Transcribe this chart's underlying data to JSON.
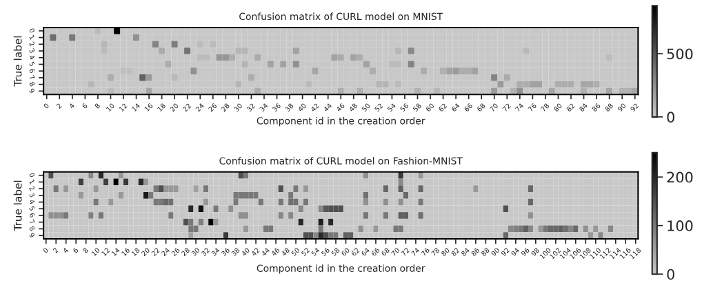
{
  "chart_data": [
    {
      "type": "heatmap",
      "title": "Confusion matrix of CURL model on MNIST",
      "xlabel": "Component id in the creation order",
      "ylabel": "True label",
      "categories": [
        "0",
        null,
        "2",
        null,
        "4",
        null,
        "6",
        null,
        "8",
        null,
        "10",
        null,
        "12",
        null,
        "14",
        null,
        "16",
        null,
        "18",
        null,
        "20",
        null,
        "22",
        null,
        "24",
        null,
        "26",
        null,
        "28",
        null,
        "30",
        null,
        "32",
        null,
        "34",
        null,
        "36",
        null,
        "38",
        null,
        "40",
        null,
        "42",
        null,
        "44",
        null,
        "46",
        null,
        "48",
        null,
        "50",
        null,
        "52",
        null,
        "54",
        null,
        "56",
        null,
        "58",
        null,
        "60",
        null,
        "62",
        null,
        "64",
        null,
        "66",
        null,
        "68",
        null,
        "70",
        null,
        "72",
        null,
        "74",
        null,
        "76",
        null,
        "78",
        null,
        "80",
        null,
        "82",
        null,
        "84",
        null,
        "86",
        null,
        "88",
        null,
        "90",
        null,
        "92"
      ],
      "y_categories": [
        "0",
        "1",
        "2",
        "3",
        "4",
        "5",
        "6",
        "7",
        "8",
        "9"
      ],
      "cells": [
        [
          0,
          0,
          0,
          0,
          0,
          0,
          0,
          0,
          60,
          0,
          0,
          880,
          0,
          0,
          0,
          0,
          0,
          0,
          0,
          0,
          0,
          0,
          0,
          0,
          0,
          0,
          0,
          0,
          0,
          0,
          0,
          0,
          0,
          0,
          0,
          0,
          0,
          0,
          0,
          0,
          0,
          0,
          0,
          0,
          0,
          0,
          0,
          0,
          0,
          0,
          0,
          0,
          0,
          0,
          0,
          0,
          0,
          0,
          0,
          0,
          0,
          0,
          0,
          0,
          0,
          0,
          0,
          0,
          0,
          0,
          0,
          0,
          0,
          0,
          0,
          0,
          0,
          0,
          0,
          0,
          0,
          0,
          0,
          0,
          0,
          0,
          0,
          0,
          0,
          0,
          0,
          0,
          0
        ],
        [
          0,
          400,
          0,
          0,
          350,
          0,
          0,
          0,
          0,
          0,
          0,
          0,
          0,
          0,
          250,
          0,
          0,
          0,
          0,
          0,
          0,
          0,
          0,
          0,
          0,
          0,
          0,
          0,
          0,
          0,
          0,
          0,
          0,
          0,
          0,
          0,
          0,
          0,
          0,
          0,
          0,
          0,
          0,
          0,
          0,
          0,
          0,
          0,
          0,
          0,
          0,
          0,
          0,
          0,
          0,
          0,
          0,
          0,
          0,
          0,
          0,
          0,
          0,
          0,
          0,
          0,
          0,
          0,
          0,
          0,
          0,
          0,
          0,
          0,
          0,
          0,
          0,
          0,
          0,
          0,
          0,
          0,
          0,
          0,
          0,
          0,
          0,
          0,
          0,
          0,
          0,
          0,
          0
        ],
        [
          0,
          0,
          0,
          0,
          0,
          0,
          0,
          0,
          0,
          80,
          0,
          0,
          0,
          0,
          0,
          0,
          0,
          300,
          0,
          0,
          330,
          0,
          0,
          0,
          60,
          0,
          60,
          0,
          0,
          0,
          0,
          0,
          0,
          0,
          0,
          0,
          0,
          0,
          0,
          0,
          0,
          0,
          0,
          0,
          0,
          0,
          0,
          0,
          0,
          0,
          0,
          0,
          0,
          0,
          0,
          0,
          0,
          0,
          0,
          0,
          0,
          0,
          0,
          0,
          0,
          0,
          0,
          0,
          0,
          0,
          0,
          0,
          0,
          0,
          0,
          0,
          0,
          0,
          0,
          0,
          0,
          0,
          0,
          0,
          0,
          0,
          0,
          0,
          0,
          0,
          0,
          0,
          0
        ],
        [
          0,
          0,
          0,
          0,
          0,
          0,
          0,
          0,
          0,
          60,
          0,
          0,
          0,
          0,
          0,
          0,
          0,
          0,
          130,
          0,
          0,
          0,
          380,
          0,
          0,
          0,
          0,
          0,
          0,
          0,
          80,
          80,
          0,
          0,
          0,
          0,
          0,
          0,
          0,
          170,
          0,
          0,
          0,
          0,
          0,
          0,
          0,
          0,
          0,
          0,
          0,
          0,
          0,
          0,
          0,
          80,
          0,
          280,
          0,
          0,
          0,
          0,
          0,
          0,
          0,
          0,
          0,
          0,
          0,
          0,
          0,
          0,
          0,
          0,
          0,
          70,
          0,
          0,
          0,
          0,
          0,
          0,
          0,
          0,
          0,
          0,
          0,
          0,
          0,
          0,
          0,
          0,
          0
        ],
        [
          0,
          0,
          0,
          0,
          0,
          0,
          0,
          0,
          0,
          0,
          0,
          0,
          0,
          0,
          0,
          0,
          0,
          0,
          0,
          0,
          0,
          0,
          0,
          0,
          60,
          60,
          0,
          220,
          220,
          120,
          0,
          0,
          0,
          130,
          0,
          0,
          0,
          0,
          0,
          0,
          0,
          0,
          0,
          0,
          0,
          170,
          130,
          0,
          170,
          120,
          0,
          0,
          0,
          0,
          0,
          0,
          0,
          0,
          0,
          0,
          0,
          0,
          0,
          0,
          0,
          0,
          0,
          0,
          0,
          0,
          0,
          0,
          0,
          0,
          0,
          0,
          0,
          0,
          0,
          0,
          0,
          0,
          0,
          0,
          0,
          0,
          0,
          0,
          60,
          0,
          0,
          0,
          0
        ],
        [
          0,
          0,
          0,
          0,
          0,
          0,
          0,
          0,
          0,
          0,
          0,
          0,
          0,
          0,
          0,
          0,
          0,
          0,
          0,
          120,
          0,
          0,
          0,
          0,
          0,
          0,
          0,
          0,
          0,
          0,
          0,
          90,
          0,
          0,
          0,
          170,
          0,
          170,
          0,
          250,
          0,
          0,
          0,
          0,
          0,
          0,
          0,
          0,
          0,
          0,
          170,
          0,
          0,
          0,
          60,
          60,
          0,
          300,
          0,
          0,
          0,
          0,
          0,
          0,
          0,
          0,
          0,
          0,
          0,
          0,
          0,
          0,
          0,
          0,
          0,
          0,
          0,
          0,
          0,
          0,
          0,
          0,
          0,
          0,
          0,
          0,
          0,
          0,
          0,
          0,
          0,
          0,
          0
        ],
        [
          0,
          0,
          0,
          0,
          0,
          0,
          0,
          0,
          0,
          0,
          0,
          0,
          40,
          40,
          0,
          0,
          0,
          0,
          0,
          0,
          0,
          0,
          0,
          250,
          0,
          0,
          0,
          0,
          0,
          0,
          0,
          0,
          0,
          0,
          0,
          0,
          0,
          0,
          0,
          0,
          0,
          0,
          150,
          0,
          0,
          0,
          0,
          0,
          0,
          0,
          0,
          120,
          0,
          0,
          0,
          0,
          0,
          0,
          0,
          130,
          0,
          0,
          100,
          170,
          200,
          120,
          120,
          170,
          0,
          0,
          0,
          0,
          0,
          0,
          0,
          0,
          0,
          0,
          0,
          0,
          0,
          0,
          0,
          0,
          0,
          0,
          0,
          0,
          0,
          0,
          0,
          0,
          0
        ],
        [
          0,
          0,
          0,
          0,
          0,
          0,
          0,
          0,
          0,
          0,
          120,
          0,
          0,
          0,
          0,
          450,
          200,
          0,
          0,
          0,
          70,
          0,
          0,
          0,
          0,
          0,
          0,
          0,
          0,
          0,
          0,
          0,
          120,
          0,
          0,
          0,
          0,
          0,
          0,
          0,
          0,
          0,
          0,
          0,
          0,
          0,
          0,
          0,
          0,
          0,
          0,
          0,
          0,
          0,
          0,
          0,
          0,
          0,
          0,
          0,
          0,
          0,
          0,
          0,
          0,
          0,
          0,
          0,
          0,
          0,
          300,
          0,
          130,
          0,
          0,
          0,
          0,
          0,
          0,
          0,
          0,
          0,
          0,
          0,
          0,
          0,
          0,
          0,
          0,
          0,
          0,
          0,
          0
        ],
        [
          0,
          0,
          0,
          0,
          0,
          0,
          0,
          80,
          0,
          0,
          0,
          0,
          0,
          0,
          0,
          0,
          0,
          0,
          0,
          0,
          0,
          0,
          0,
          0,
          0,
          0,
          0,
          0,
          0,
          0,
          80,
          0,
          0,
          0,
          0,
          0,
          0,
          0,
          0,
          0,
          0,
          60,
          0,
          0,
          0,
          0,
          0,
          0,
          0,
          0,
          0,
          0,
          90,
          90,
          0,
          60,
          0,
          0,
          0,
          0,
          0,
          0,
          0,
          0,
          0,
          0,
          0,
          0,
          0,
          0,
          0,
          200,
          0,
          0,
          120,
          120,
          170,
          170,
          0,
          0,
          120,
          120,
          120,
          0,
          150,
          150,
          120,
          0,
          0,
          0,
          0,
          0,
          0
        ],
        [
          0,
          0,
          0,
          0,
          0,
          0,
          0,
          0,
          0,
          0,
          60,
          0,
          0,
          0,
          0,
          0,
          150,
          0,
          0,
          0,
          0,
          0,
          0,
          0,
          0,
          0,
          0,
          0,
          0,
          0,
          0,
          0,
          0,
          130,
          0,
          0,
          0,
          0,
          0,
          0,
          0,
          0,
          0,
          0,
          0,
          0,
          110,
          0,
          0,
          110,
          0,
          0,
          0,
          0,
          0,
          0,
          0,
          0,
          100,
          0,
          0,
          80,
          0,
          0,
          0,
          0,
          0,
          0,
          0,
          0,
          200,
          0,
          0,
          100,
          250,
          0,
          0,
          0,
          0,
          150,
          0,
          0,
          0,
          0,
          100,
          0,
          0,
          0,
          150,
          0,
          100,
          100,
          150
        ]
      ],
      "clim": [
        0,
        880
      ],
      "cticks": [
        0,
        500
      ]
    },
    {
      "type": "heatmap",
      "title": "Confusion matrix of CURL model on Fashion-MNIST",
      "xlabel": "Component id in the creation order",
      "ylabel": "True label",
      "categories": [
        "0",
        null,
        "2",
        null,
        "4",
        null,
        "6",
        null,
        "8",
        null,
        "10",
        null,
        "12",
        null,
        "14",
        null,
        "16",
        null,
        "18",
        null,
        "20",
        null,
        "22",
        null,
        "24",
        null,
        "26",
        null,
        "28",
        null,
        "30",
        null,
        "32",
        null,
        "34",
        null,
        "36",
        null,
        "38",
        null,
        "40",
        null,
        "42",
        null,
        "44",
        null,
        "46",
        null,
        "48",
        null,
        "50",
        null,
        "52",
        null,
        "54",
        null,
        "56",
        null,
        "58",
        null,
        "60",
        null,
        "62",
        null,
        "64",
        null,
        "66",
        null,
        "68",
        null,
        "70",
        null,
        "72",
        null,
        "74",
        null,
        "76",
        null,
        "78",
        null,
        "80",
        null,
        "82",
        null,
        "84",
        null,
        "86",
        null,
        "88",
        null,
        "90",
        null,
        "92",
        null,
        "94",
        null,
        "96",
        null,
        "98",
        null,
        "100",
        null,
        "102",
        null,
        "104",
        null,
        "106",
        null,
        "108",
        null,
        "110",
        null,
        "112",
        null,
        "114",
        null,
        "116",
        null,
        "118"
      ],
      "y_categories": [
        "0",
        "1",
        "2",
        "3",
        "4",
        "5",
        "6",
        "7",
        "8",
        "9"
      ],
      "cells": [
        [
          0,
          150,
          0,
          0,
          0,
          0,
          0,
          0,
          0,
          80,
          0,
          200,
          0,
          0,
          0,
          60,
          0,
          0,
          0,
          0,
          0,
          0,
          0,
          0,
          0,
          0,
          0,
          0,
          0,
          0,
          0,
          0,
          0,
          0,
          0,
          0,
          0,
          0,
          0,
          150,
          100,
          0,
          0,
          0,
          0,
          0,
          0,
          0,
          0,
          0,
          0,
          0,
          0,
          0,
          0,
          0,
          0,
          0,
          0,
          0,
          0,
          0,
          0,
          0,
          70,
          0,
          0,
          0,
          0,
          0,
          0,
          180,
          0,
          0,
          0,
          60,
          0,
          0,
          0,
          0,
          0,
          0,
          0,
          0,
          0,
          0,
          0,
          0,
          0,
          0,
          0,
          0,
          0,
          0,
          0,
          0,
          0,
          0,
          0,
          0,
          0,
          0,
          0,
          0,
          0,
          0,
          0,
          0,
          0,
          0,
          0,
          0,
          0,
          0,
          0,
          0,
          0,
          0,
          0
        ],
        [
          0,
          0,
          0,
          0,
          0,
          0,
          0,
          170,
          0,
          0,
          0,
          0,
          170,
          0,
          250,
          0,
          180,
          0,
          0,
          200,
          60,
          0,
          0,
          0,
          0,
          0,
          0,
          0,
          0,
          0,
          0,
          0,
          0,
          0,
          0,
          0,
          0,
          0,
          0,
          0,
          0,
          0,
          0,
          0,
          0,
          0,
          0,
          0,
          0,
          0,
          0,
          0,
          0,
          0,
          0,
          0,
          0,
          0,
          0,
          0,
          0,
          0,
          0,
          0,
          0,
          0,
          0,
          0,
          0,
          0,
          0,
          80,
          0,
          0,
          0,
          0,
          0,
          0,
          0,
          0,
          0,
          0,
          0,
          0,
          0,
          0,
          0,
          0,
          0,
          0,
          0,
          0,
          0,
          0,
          0,
          0,
          0,
          0,
          0,
          0,
          0,
          0,
          0,
          0,
          0,
          0,
          0,
          0,
          0,
          0,
          0,
          0,
          0,
          0,
          0,
          0,
          0,
          0,
          0
        ],
        [
          0,
          0,
          100,
          0,
          60,
          0,
          0,
          0,
          0,
          0,
          60,
          0,
          0,
          0,
          0,
          0,
          0,
          0,
          0,
          0,
          0,
          0,
          100,
          150,
          60,
          60,
          60,
          0,
          0,
          0,
          50,
          0,
          100,
          0,
          0,
          0,
          0,
          0,
          0,
          0,
          0,
          0,
          0,
          0,
          0,
          0,
          0,
          150,
          0,
          0,
          100,
          0,
          60,
          0,
          0,
          0,
          0,
          0,
          0,
          0,
          0,
          0,
          0,
          0,
          0,
          0,
          0,
          0,
          120,
          0,
          0,
          130,
          0,
          0,
          0,
          120,
          0,
          0,
          0,
          0,
          0,
          0,
          0,
          0,
          0,
          0,
          60,
          0,
          0,
          0,
          0,
          0,
          0,
          0,
          0,
          0,
          0,
          120,
          0,
          0,
          0,
          0,
          0,
          0,
          0,
          0,
          0,
          0,
          0,
          0,
          0,
          0,
          0,
          0,
          0,
          0,
          0,
          0,
          0
        ],
        [
          0,
          0,
          0,
          0,
          0,
          0,
          0,
          60,
          0,
          0,
          0,
          0,
          0,
          0,
          0,
          60,
          0,
          0,
          0,
          0,
          220,
          100,
          0,
          0,
          0,
          0,
          0,
          0,
          0,
          0,
          0,
          0,
          0,
          0,
          0,
          0,
          0,
          0,
          100,
          100,
          100,
          100,
          100,
          0,
          0,
          0,
          0,
          0,
          0,
          100,
          0,
          0,
          0,
          0,
          0,
          0,
          0,
          0,
          0,
          0,
          0,
          0,
          0,
          0,
          110,
          0,
          0,
          0,
          0,
          0,
          0,
          0,
          120,
          0,
          0,
          0,
          0,
          0,
          0,
          0,
          0,
          0,
          0,
          0,
          0,
          0,
          0,
          0,
          0,
          0,
          0,
          0,
          0,
          0,
          0,
          0,
          0,
          0,
          0,
          0,
          0,
          0,
          0,
          0,
          0,
          0,
          0,
          0,
          0,
          0,
          0,
          0,
          0,
          0,
          0,
          0,
          0,
          0,
          0
        ],
        [
          0,
          0,
          0,
          0,
          0,
          0,
          0,
          0,
          0,
          0,
          100,
          0,
          0,
          60,
          0,
          0,
          0,
          0,
          0,
          0,
          0,
          0,
          100,
          100,
          120,
          110,
          0,
          0,
          0,
          0,
          0,
          0,
          60,
          0,
          0,
          0,
          0,
          0,
          100,
          0,
          0,
          0,
          0,
          100,
          0,
          0,
          0,
          100,
          0,
          110,
          110,
          0,
          100,
          0,
          0,
          0,
          0,
          0,
          0,
          0,
          0,
          0,
          0,
          0,
          70,
          0,
          0,
          0,
          70,
          0,
          0,
          70,
          0,
          0,
          0,
          100,
          0,
          0,
          0,
          0,
          0,
          0,
          0,
          0,
          0,
          0,
          0,
          0,
          0,
          0,
          0,
          0,
          0,
          0,
          0,
          0,
          0,
          120,
          0,
          0,
          0,
          0,
          0,
          0,
          0,
          0,
          0,
          0,
          0,
          0,
          0,
          0,
          0,
          0,
          0,
          0,
          0,
          0,
          0
        ],
        [
          0,
          0,
          0,
          0,
          0,
          0,
          0,
          0,
          0,
          0,
          0,
          0,
          0,
          0,
          0,
          0,
          0,
          0,
          0,
          0,
          0,
          0,
          0,
          0,
          0,
          0,
          0,
          0,
          0,
          200,
          0,
          230,
          0,
          0,
          100,
          0,
          0,
          70,
          0,
          0,
          0,
          0,
          0,
          0,
          0,
          0,
          0,
          0,
          0,
          0,
          0,
          80,
          0,
          0,
          0,
          80,
          140,
          150,
          150,
          150,
          0,
          0,
          0,
          0,
          0,
          0,
          0,
          0,
          0,
          0,
          0,
          0,
          0,
          0,
          0,
          0,
          0,
          0,
          0,
          0,
          0,
          0,
          0,
          0,
          0,
          0,
          0,
          0,
          0,
          0,
          0,
          0,
          150,
          0,
          0,
          0,
          0,
          0,
          0,
          0,
          0,
          0,
          0,
          0,
          0,
          0,
          0,
          0,
          0,
          0,
          0,
          0,
          0,
          0,
          0,
          0,
          0,
          0,
          0
        ],
        [
          0,
          70,
          70,
          70,
          100,
          0,
          0,
          0,
          0,
          90,
          0,
          100,
          0,
          0,
          0,
          0,
          0,
          0,
          0,
          0,
          0,
          0,
          0,
          0,
          0,
          100,
          0,
          0,
          0,
          0,
          0,
          0,
          0,
          0,
          0,
          0,
          0,
          0,
          0,
          70,
          70,
          0,
          0,
          0,
          0,
          0,
          0,
          80,
          0,
          80,
          0,
          0,
          0,
          0,
          0,
          0,
          0,
          0,
          0,
          0,
          0,
          0,
          0,
          0,
          100,
          0,
          0,
          0,
          100,
          0,
          0,
          130,
          130,
          0,
          0,
          110,
          0,
          0,
          0,
          0,
          0,
          0,
          0,
          0,
          0,
          0,
          0,
          0,
          0,
          0,
          0,
          0,
          0,
          0,
          0,
          0,
          0,
          70,
          0,
          0,
          0,
          0,
          0,
          0,
          0,
          0,
          0,
          0,
          0,
          0,
          0,
          0,
          0,
          0,
          0,
          0,
          0,
          0,
          0
        ],
        [
          0,
          0,
          0,
          0,
          0,
          0,
          0,
          0,
          0,
          0,
          0,
          0,
          0,
          0,
          0,
          0,
          0,
          0,
          0,
          0,
          0,
          0,
          0,
          0,
          0,
          0,
          0,
          0,
          150,
          100,
          0,
          90,
          0,
          250,
          60,
          0,
          0,
          0,
          0,
          0,
          0,
          0,
          0,
          0,
          0,
          0,
          0,
          0,
          0,
          0,
          0,
          200,
          0,
          0,
          0,
          210,
          0,
          200,
          0,
          0,
          0,
          0,
          0,
          0,
          0,
          0,
          0,
          0,
          0,
          0,
          0,
          0,
          0,
          0,
          0,
          0,
          0,
          0,
          0,
          0,
          0,
          0,
          0,
          0,
          0,
          0,
          0,
          0,
          0,
          0,
          0,
          0,
          0,
          0,
          0,
          0,
          0,
          0,
          0,
          0,
          0,
          0,
          0,
          0,
          0,
          0,
          0,
          0,
          0,
          0,
          0,
          0,
          0,
          0,
          0,
          0,
          0,
          0,
          0
        ],
        [
          0,
          0,
          0,
          0,
          0,
          0,
          0,
          0,
          0,
          0,
          0,
          0,
          0,
          0,
          0,
          0,
          0,
          0,
          0,
          0,
          0,
          0,
          0,
          0,
          0,
          0,
          0,
          0,
          0,
          100,
          100,
          0,
          0,
          0,
          0,
          0,
          0,
          0,
          0,
          0,
          60,
          0,
          0,
          0,
          100,
          100,
          0,
          0,
          0,
          0,
          0,
          0,
          0,
          0,
          0,
          100,
          0,
          0,
          0,
          0,
          0,
          0,
          0,
          70,
          0,
          0,
          60,
          0,
          0,
          0,
          100,
          100,
          0,
          0,
          0,
          0,
          0,
          0,
          0,
          0,
          0,
          0,
          0,
          0,
          0,
          0,
          0,
          0,
          0,
          0,
          0,
          0,
          0,
          80,
          90,
          100,
          130,
          80,
          0,
          60,
          100,
          120,
          120,
          130,
          110,
          80,
          120,
          0,
          70,
          0,
          60,
          0,
          0,
          80,
          0,
          0,
          0,
          0,
          0
        ],
        [
          0,
          0,
          0,
          0,
          0,
          0,
          0,
          0,
          0,
          0,
          0,
          0,
          0,
          0,
          0,
          0,
          0,
          0,
          0,
          0,
          0,
          0,
          0,
          0,
          0,
          0,
          0,
          0,
          0,
          50,
          0,
          0,
          0,
          0,
          0,
          0,
          180,
          0,
          0,
          0,
          0,
          0,
          0,
          0,
          0,
          0,
          0,
          0,
          0,
          0,
          0,
          0,
          150,
          150,
          80,
          200,
          150,
          100,
          100,
          0,
          130,
          130,
          0,
          0,
          0,
          0,
          0,
          0,
          0,
          0,
          0,
          0,
          0,
          0,
          0,
          0,
          0,
          0,
          0,
          0,
          0,
          0,
          0,
          0,
          0,
          0,
          0,
          0,
          0,
          0,
          0,
          0,
          120,
          0,
          0,
          0,
          0,
          0,
          0,
          0,
          0,
          0,
          0,
          0,
          0,
          0,
          0,
          0,
          0,
          60,
          0,
          80,
          0,
          0,
          0,
          0,
          0,
          0,
          0
        ]
      ],
      "clim": [
        0,
        250
      ],
      "cticks": [
        0,
        100,
        200
      ]
    }
  ]
}
